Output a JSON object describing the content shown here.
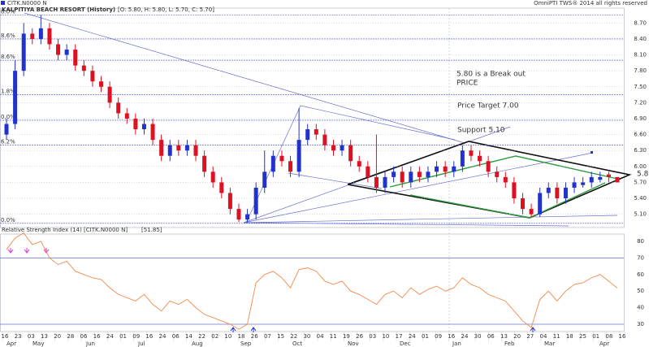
{
  "header": {
    "symbol": "CITK.N0000 N",
    "name": "KALPITIYA BEACH RESORT (History)",
    "ohlc": "[O: 5.80, H: 5.80, L: 5.70, C: 5.70]",
    "copyright": "OmniPTI TWS® 2014 all rights reserved",
    "last_price": "5.80"
  },
  "annotations": [
    "5.80 is a Break out",
    "PRICE",
    "Price Target 7.00",
    "Support 5.10"
  ],
  "chart_data": [
    {
      "type": "candlestick",
      "ylim": [
        4.85,
        8.98
      ],
      "yticks": [
        {
          "value": 5.1,
          "label": "5.10"
        },
        {
          "value": 5.4,
          "label": "5.40"
        },
        {
          "value": 5.7,
          "label": "5.70"
        },
        {
          "value": 6.0,
          "label": "6.00"
        },
        {
          "value": 6.3,
          "label": "6.30"
        },
        {
          "value": 6.6,
          "label": "6.60"
        },
        {
          "value": 6.9,
          "label": "6.90"
        },
        {
          "value": 7.2,
          "label": "7.20"
        },
        {
          "value": 7.5,
          "label": "7.50"
        },
        {
          "value": 7.8,
          "label": "7.80"
        },
        {
          "value": 8.1,
          "label": "8.10"
        },
        {
          "value": 8.4,
          "label": "8.40"
        },
        {
          "value": 8.7,
          "label": "8.70"
        }
      ],
      "fib_levels": [
        {
          "value": 8.85,
          "label": "0.0%"
        },
        {
          "value": 8.4,
          "label": "8.6%"
        },
        {
          "value": 8.0,
          "label": "8.6%"
        },
        {
          "value": 7.35,
          "label": "1.8%"
        },
        {
          "value": 6.87,
          "label": "0.0%"
        },
        {
          "value": 6.4,
          "label": "6.2%"
        },
        {
          "value": 4.93,
          "label": "0.0%"
        }
      ],
      "up_color": "#2233cc",
      "down_color": "#dd1122",
      "open": [
        6.6,
        6.8,
        7.8,
        8.5,
        8.4,
        8.6,
        8.3,
        8.1,
        8.2,
        7.9,
        7.8,
        7.6,
        7.5,
        7.2,
        7.0,
        6.9,
        6.7,
        6.8,
        6.5,
        6.2,
        6.4,
        6.3,
        6.4,
        6.2,
        5.9,
        5.7,
        5.5,
        5.2,
        5.0,
        5.1,
        5.6,
        5.9,
        6.2,
        6.1,
        5.9,
        6.5,
        6.7,
        6.6,
        6.4,
        6.3,
        6.4,
        6.1,
        6.0,
        5.8,
        5.6,
        5.8,
        5.9,
        5.7,
        5.9,
        5.8,
        5.9,
        6.0,
        5.9,
        6.0,
        6.3,
        6.2,
        6.1,
        5.9,
        5.8,
        5.7,
        5.4,
        5.2,
        5.1,
        5.5,
        5.6,
        5.4,
        5.6,
        5.65,
        5.7,
        5.75,
        5.85,
        5.8
      ],
      "high": [
        6.9,
        8.0,
        8.7,
        8.6,
        8.85,
        8.7,
        8.4,
        8.3,
        8.3,
        8.0,
        7.9,
        7.7,
        7.6,
        7.3,
        7.1,
        7.0,
        6.9,
        6.9,
        6.6,
        6.5,
        6.5,
        6.5,
        6.5,
        6.3,
        6.0,
        5.8,
        5.6,
        5.3,
        5.2,
        5.7,
        6.3,
        6.3,
        6.3,
        6.2,
        7.1,
        6.8,
        6.8,
        6.7,
        6.5,
        6.5,
        6.5,
        6.2,
        6.1,
        6.6,
        5.9,
        6.0,
        6.0,
        6.0,
        6.0,
        6.0,
        6.1,
        6.1,
        6.1,
        6.4,
        6.4,
        6.3,
        6.2,
        6.0,
        5.9,
        5.8,
        5.5,
        5.3,
        5.6,
        5.7,
        5.7,
        5.7,
        5.8,
        5.8,
        5.9,
        5.9,
        5.9,
        5.8
      ],
      "low": [
        6.5,
        6.7,
        7.7,
        8.3,
        8.3,
        8.2,
        8.0,
        8.0,
        7.8,
        7.7,
        7.5,
        7.4,
        7.1,
        6.9,
        6.8,
        6.6,
        6.6,
        6.4,
        6.1,
        6.1,
        6.2,
        6.2,
        6.1,
        5.8,
        5.6,
        5.4,
        5.1,
        4.95,
        4.95,
        5.0,
        5.5,
        5.8,
        6.0,
        5.8,
        5.8,
        6.4,
        6.5,
        6.3,
        6.2,
        6.2,
        6.0,
        5.9,
        5.7,
        5.5,
        5.5,
        5.7,
        5.6,
        5.6,
        5.7,
        5.7,
        5.8,
        5.8,
        5.8,
        5.9,
        6.1,
        6.0,
        5.8,
        5.7,
        5.6,
        5.3,
        5.1,
        5.05,
        5.05,
        5.4,
        5.3,
        5.3,
        5.5,
        5.6,
        5.6,
        5.7,
        5.7,
        5.7
      ],
      "close": [
        6.8,
        7.8,
        8.5,
        8.4,
        8.6,
        8.3,
        8.1,
        8.2,
        7.9,
        7.8,
        7.6,
        7.5,
        7.2,
        7.0,
        6.9,
        6.7,
        6.8,
        6.5,
        6.2,
        6.4,
        6.3,
        6.4,
        6.2,
        5.9,
        5.7,
        5.5,
        5.2,
        5.0,
        5.1,
        5.6,
        5.9,
        6.2,
        6.1,
        5.9,
        6.5,
        6.7,
        6.6,
        6.4,
        6.3,
        6.4,
        6.1,
        6.0,
        5.8,
        5.6,
        5.8,
        5.9,
        5.7,
        5.9,
        5.8,
        5.9,
        6.0,
        5.9,
        6.0,
        6.3,
        6.2,
        6.1,
        5.9,
        5.8,
        5.7,
        5.4,
        5.2,
        5.1,
        5.5,
        5.6,
        5.4,
        5.6,
        5.7,
        5.7,
        5.8,
        5.8,
        5.8,
        5.7
      ]
    },
    {
      "type": "line",
      "title": "Relative Strength Index (14) [CITK.N0000 N]",
      "last_label": "[51.85]",
      "color": "#f08a4b",
      "ylim": [
        25.6,
        84.4
      ],
      "yticks": [
        30,
        40,
        50,
        60,
        70,
        80
      ],
      "levels": [
        30,
        70
      ],
      "values": [
        75,
        82,
        85,
        78,
        80,
        70,
        66,
        68,
        62,
        60,
        58,
        57,
        52,
        48,
        46,
        44,
        48,
        42,
        38,
        44,
        42,
        45,
        40,
        36,
        34,
        32,
        30,
        27,
        30,
        55,
        60,
        62,
        58,
        52,
        63,
        64,
        62,
        56,
        54,
        56,
        50,
        48,
        45,
        42,
        48,
        50,
        46,
        52,
        48,
        51,
        53,
        50,
        52,
        58,
        54,
        52,
        48,
        46,
        44,
        38,
        32,
        28,
        45,
        50,
        44,
        50,
        54,
        55,
        58,
        60,
        56,
        51.85
      ]
    }
  ],
  "date_labels": [
    "16",
    "23",
    "03",
    "13",
    "20",
    "28",
    "06",
    "16",
    "24",
    "01",
    "09",
    "16",
    "24",
    "06",
    "14",
    "22",
    "02",
    "10",
    "18",
    "26",
    "07",
    "15",
    "22",
    "30",
    "04",
    "11",
    "19",
    "26",
    "03",
    "10",
    "17",
    "24",
    "01",
    "09",
    "16",
    "24",
    "30",
    "06",
    "13",
    "20",
    "27",
    "04",
    "11",
    "18",
    "25",
    "01",
    "08",
    "16"
  ],
  "months": [
    "Apr",
    "May",
    "Jun",
    "Jul",
    "Aug",
    "Sep",
    "Oct",
    "Nov",
    "Dec",
    "Jan",
    "Feb",
    "Mar",
    "Apr"
  ]
}
